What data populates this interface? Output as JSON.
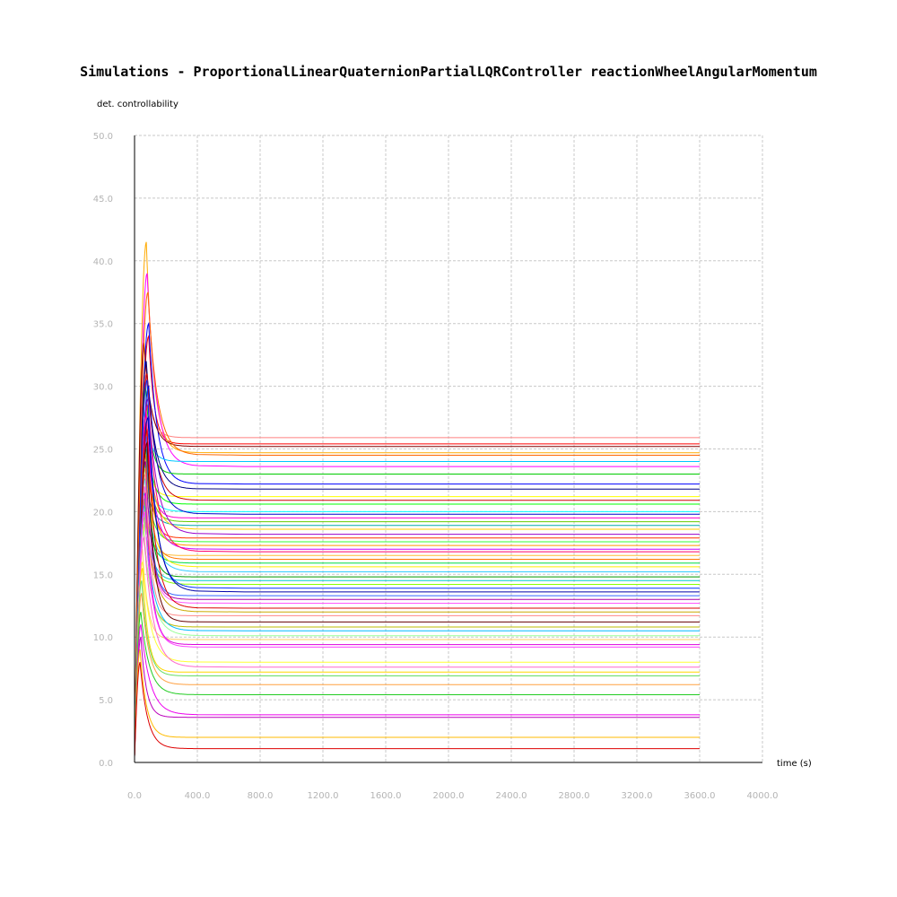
{
  "title": "Simulations - ProportionalLinearQuaternionPartialLQRController reactionWheelAngularMomentum",
  "chart_data": {
    "type": "line",
    "title": "Simulations - ProportionalLinearQuaternionPartialLQRController reactionWheelAngularMomentum",
    "xlabel": "time (s)",
    "ylabel": "det. controllability",
    "xlim": [
      0,
      4000
    ],
    "ylim": [
      0,
      50
    ],
    "grid": true,
    "legend": "none",
    "x_ticks": [
      "0.0",
      "400.0",
      "800.0",
      "1200.0",
      "1600.0",
      "2000.0",
      "2400.0",
      "2800.0",
      "3200.0",
      "3600.0",
      "4000.0"
    ],
    "y_ticks": [
      "0.0",
      "5.0",
      "10.0",
      "15.0",
      "20.0",
      "25.0",
      "30.0",
      "35.0",
      "40.0",
      "45.0",
      "50.0"
    ],
    "x_end": 3600,
    "series": [
      {
        "color": "#ff0000",
        "start": 0.5,
        "peak": 34.0,
        "peak_t": 90,
        "final": 25.4
      },
      {
        "color": "#ff8080",
        "start": 1.0,
        "peak": 31.0,
        "peak_t": 70,
        "final": 25.9
      },
      {
        "color": "#ffaa00",
        "start": 0.8,
        "peak": 41.5,
        "peak_t": 75,
        "final": 24.7
      },
      {
        "color": "#0000ff",
        "start": 0.6,
        "peak": 35.0,
        "peak_t": 90,
        "final": 22.2
      },
      {
        "color": "#ff00ff",
        "start": 0.4,
        "peak": 39.0,
        "peak_t": 80,
        "final": 23.6
      },
      {
        "color": "#00cc00",
        "start": 0.7,
        "peak": 30.0,
        "peak_t": 70,
        "final": 23.0
      },
      {
        "color": "#00c8ff",
        "start": 0.6,
        "peak": 28.0,
        "peak_t": 60,
        "final": 24.0
      },
      {
        "color": "#800000",
        "start": 0.9,
        "peak": 33.5,
        "peak_t": 60,
        "final": 25.2
      },
      {
        "color": "#000080",
        "start": 0.5,
        "peak": 32.0,
        "peak_t": 75,
        "final": 21.8
      },
      {
        "color": "#ff6600",
        "start": 1.1,
        "peak": 37.5,
        "peak_t": 85,
        "final": 24.5
      },
      {
        "color": "#ffff00",
        "start": 0.6,
        "peak": 26.0,
        "peak_t": 65,
        "final": 21.2
      },
      {
        "color": "#00ff00",
        "start": 0.5,
        "peak": 27.0,
        "peak_t": 70,
        "final": 20.6
      },
      {
        "color": "#00ffff",
        "start": 0.6,
        "peak": 24.0,
        "peak_t": 60,
        "final": 20.0
      },
      {
        "color": "#cc0000",
        "start": 0.7,
        "peak": 31.0,
        "peak_t": 80,
        "final": 20.9
      },
      {
        "color": "#0000cc",
        "start": 0.8,
        "peak": 30.0,
        "peak_t": 90,
        "final": 19.8
      },
      {
        "color": "#ff00cc",
        "start": 0.5,
        "peak": 28.0,
        "peak_t": 75,
        "final": 19.5
      },
      {
        "color": "#66cc00",
        "start": 0.6,
        "peak": 25.0,
        "peak_t": 70,
        "final": 19.2
      },
      {
        "color": "#00aaaa",
        "start": 0.6,
        "peak": 23.0,
        "peak_t": 60,
        "final": 18.9
      },
      {
        "color": "#ffcc00",
        "start": 0.7,
        "peak": 26.5,
        "peak_t": 70,
        "final": 18.6
      },
      {
        "color": "#9900cc",
        "start": 0.5,
        "peak": 29.0,
        "peak_t": 85,
        "final": 18.2
      },
      {
        "color": "#ff3300",
        "start": 0.6,
        "peak": 27.0,
        "peak_t": 75,
        "final": 17.9
      },
      {
        "color": "#33ff33",
        "start": 0.5,
        "peak": 24.0,
        "peak_t": 65,
        "final": 17.6
      },
      {
        "color": "#ff9900",
        "start": 0.8,
        "peak": 25.5,
        "peak_t": 70,
        "final": 17.3
      },
      {
        "color": "#cc00ff",
        "start": 0.6,
        "peak": 26.0,
        "peak_t": 80,
        "final": 17.0
      },
      {
        "color": "#ff0066",
        "start": 0.6,
        "peak": 28.5,
        "peak_t": 85,
        "final": 16.8
      },
      {
        "color": "#ffbb33",
        "start": 0.5,
        "peak": 22.0,
        "peak_t": 60,
        "final": 16.5
      },
      {
        "color": "#ff7700",
        "start": 0.7,
        "peak": 24.5,
        "peak_t": 70,
        "final": 16.2
      },
      {
        "color": "#00dd44",
        "start": 0.5,
        "peak": 21.0,
        "peak_t": 60,
        "final": 15.9
      },
      {
        "color": "#ffee00",
        "start": 0.6,
        "peak": 23.5,
        "peak_t": 70,
        "final": 15.6
      },
      {
        "color": "#33ccff",
        "start": 0.5,
        "peak": 22.5,
        "peak_t": 65,
        "final": 15.2
      },
      {
        "color": "#009900",
        "start": 0.6,
        "peak": 25.0,
        "peak_t": 75,
        "final": 14.8
      },
      {
        "color": "#00cccc",
        "start": 0.6,
        "peak": 21.5,
        "peak_t": 60,
        "final": 14.5
      },
      {
        "color": "#88ff00",
        "start": 0.5,
        "peak": 20.0,
        "peak_t": 55,
        "final": 14.2
      },
      {
        "color": "#0033ff",
        "start": 0.7,
        "peak": 30.5,
        "peak_t": 80,
        "final": 13.9
      },
      {
        "color": "#0000aa",
        "start": 0.6,
        "peak": 27.5,
        "peak_t": 85,
        "final": 13.6
      },
      {
        "color": "#3366ff",
        "start": 0.5,
        "peak": 26.0,
        "peak_t": 75,
        "final": 13.3
      },
      {
        "color": "#aa00aa",
        "start": 0.6,
        "peak": 24.0,
        "peak_t": 70,
        "final": 13.0
      },
      {
        "color": "#ff55ff",
        "start": 0.5,
        "peak": 22.0,
        "peak_t": 65,
        "final": 12.7
      },
      {
        "color": "#dd0000",
        "start": 0.6,
        "peak": 26.5,
        "peak_t": 80,
        "final": 12.3
      },
      {
        "color": "#ccaa00",
        "start": 0.5,
        "peak": 21.0,
        "peak_t": 60,
        "final": 12.0
      },
      {
        "color": "#ff8888",
        "start": 0.6,
        "peak": 23.0,
        "peak_t": 70,
        "final": 11.7
      },
      {
        "color": "#660000",
        "start": 0.7,
        "peak": 25.5,
        "peak_t": 80,
        "final": 11.2
      },
      {
        "color": "#bbbb00",
        "start": 0.5,
        "peak": 19.0,
        "peak_t": 55,
        "final": 10.8
      },
      {
        "color": "#00bbff",
        "start": 0.5,
        "peak": 20.5,
        "peak_t": 60,
        "final": 10.5
      },
      {
        "color": "#99ff99",
        "start": 0.6,
        "peak": 18.5,
        "peak_t": 55,
        "final": 10.1
      },
      {
        "color": "#ffcc66",
        "start": 0.5,
        "peak": 17.0,
        "peak_t": 50,
        "final": 9.8
      },
      {
        "color": "#dd00dd",
        "start": 0.6,
        "peak": 21.5,
        "peak_t": 70,
        "final": 9.4
      },
      {
        "color": "#ff44ff",
        "start": 0.6,
        "peak": 20.0,
        "peak_t": 65,
        "final": 9.2
      },
      {
        "color": "#ffff33",
        "start": 0.5,
        "peak": 16.0,
        "peak_t": 50,
        "final": 8.0
      },
      {
        "color": "#ff66cc",
        "start": 0.6,
        "peak": 18.0,
        "peak_t": 60,
        "final": 7.6
      },
      {
        "color": "#ffd700",
        "start": 0.5,
        "peak": 15.5,
        "peak_t": 50,
        "final": 7.2
      },
      {
        "color": "#66dd66",
        "start": 0.6,
        "peak": 14.5,
        "peak_t": 45,
        "final": 6.9
      },
      {
        "color": "#ffa040",
        "start": 0.5,
        "peak": 13.5,
        "peak_t": 45,
        "final": 6.2
      },
      {
        "color": "#22cc22",
        "start": 0.6,
        "peak": 12.0,
        "peak_t": 40,
        "final": 5.4
      },
      {
        "color": "#ee00ee",
        "start": 0.5,
        "peak": 11.0,
        "peak_t": 40,
        "final": 3.8
      },
      {
        "color": "#bb00bb",
        "start": 0.5,
        "peak": 10.0,
        "peak_t": 40,
        "final": 3.6
      },
      {
        "color": "#ffbb00",
        "start": 0.6,
        "peak": 9.0,
        "peak_t": 35,
        "final": 2.0
      },
      {
        "color": "#dd0000",
        "start": 0.4,
        "peak": 8.0,
        "peak_t": 35,
        "final": 1.1
      }
    ]
  }
}
